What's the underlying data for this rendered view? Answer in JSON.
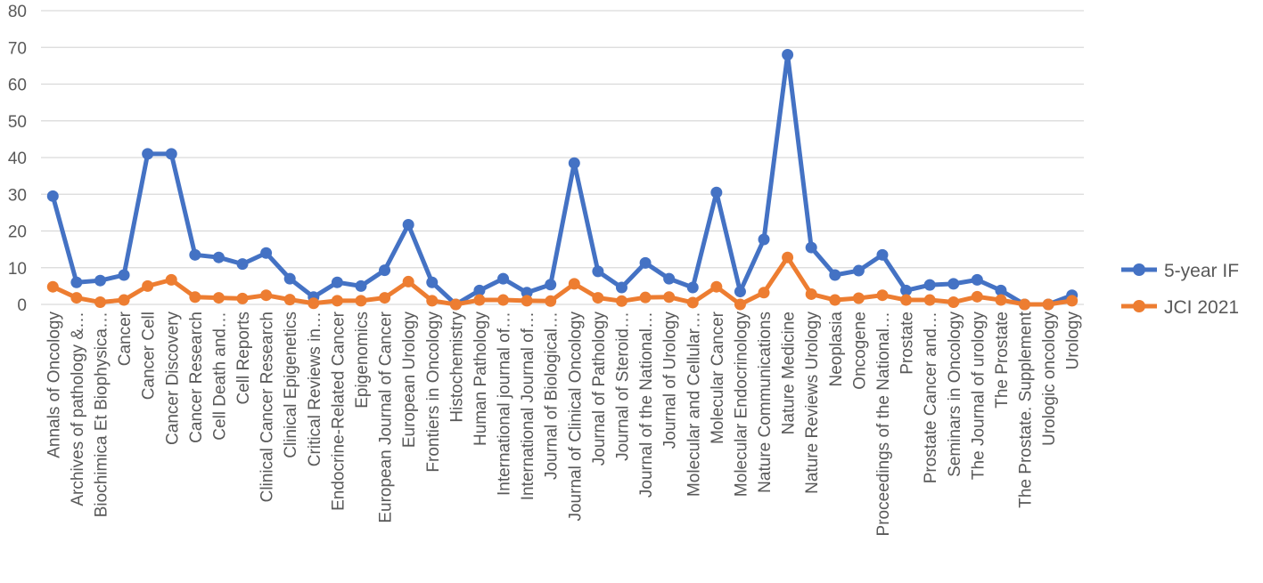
{
  "chart_data": {
    "type": "line",
    "title": "",
    "xlabel": "",
    "ylabel": "",
    "ylim": [
      0,
      80
    ],
    "yticks": [
      0,
      10,
      20,
      30,
      40,
      50,
      60,
      70,
      80
    ],
    "grid": true,
    "legend_position": "right",
    "categories": [
      "Annals of Oncology",
      "Archives of pathology &…",
      "Biochimica Et Biophysica…",
      "Cancer",
      "Cancer Cell",
      "Cancer Discovery",
      "Cancer Research",
      "Cell Death and…",
      "Cell Reports",
      "Clinical Cancer Research",
      "Clinical Epigenetics",
      "Critical Reviews in…",
      "Endocrine-Related Cancer",
      "Epigenomics",
      "European Journal of Cancer",
      "European Urology",
      "Frontiers in Oncology",
      "Histochemistry",
      "Human Pathology",
      "International journal of…",
      "International Journal of…",
      "Journal of Biological…",
      "Journal of Clinical Oncology",
      "Journal of Pathology",
      "Journal of Steroid…",
      "Journal of the National…",
      "Journal of Urology",
      "Molecular and Cellular…",
      "Molecular Cancer",
      "Molecular Endocrinology",
      "Nature Communications",
      "Nature Medicine",
      "Nature Reviews Urology",
      "Neoplasia",
      "Oncogene",
      "Proceedings of the National…",
      "Prostate",
      "Prostate Cancer and…",
      "Seminars in Oncology",
      "The Journal of urology",
      "The Prostate",
      "The Prostate. Supplement",
      "Urologic oncology",
      "Urology"
    ],
    "series": [
      {
        "name": "5-year IF",
        "color": "#4472c4",
        "values": [
          29.5,
          6,
          6.5,
          8,
          41,
          41,
          13.5,
          12.8,
          11,
          14,
          7,
          2,
          6,
          5,
          9.3,
          21.7,
          6,
          0,
          3.8,
          7,
          3.2,
          5.4,
          38.5,
          9,
          4.6,
          11.3,
          7,
          4.6,
          30.5,
          3.5,
          17.7,
          68,
          15.5,
          8,
          9.2,
          13.5,
          3.8,
          5.3,
          5.6,
          6.7,
          3.8,
          0,
          0,
          2.5
        ]
      },
      {
        "name": "JCI 2021",
        "color": "#ed7d31",
        "values": [
          4.8,
          1.8,
          0.6,
          1.2,
          5,
          6.7,
          2,
          1.8,
          1.6,
          2.5,
          1.3,
          0.3,
          1,
          1,
          1.8,
          6.2,
          1,
          0,
          1.2,
          1.2,
          1,
          0.9,
          5.6,
          1.8,
          0.9,
          1.9,
          2,
          0.5,
          4.8,
          0,
          3.2,
          12.8,
          2.8,
          1.2,
          1.7,
          2.5,
          1.2,
          1.2,
          0.6,
          2.1,
          1.2,
          0,
          0,
          1
        ]
      }
    ]
  }
}
